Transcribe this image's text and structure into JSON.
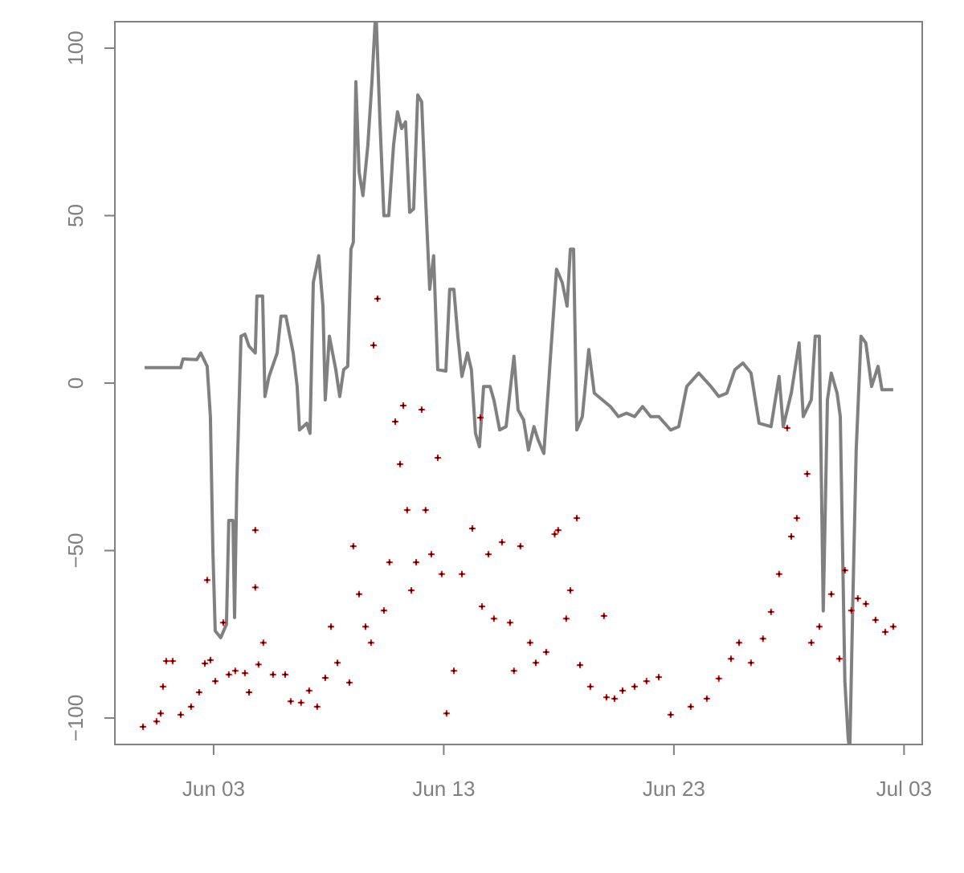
{
  "chart_data": {
    "type": "line",
    "xlim": [
      -1.29,
      33.79
    ],
    "ylim": [
      -107.9,
      107.9
    ],
    "xticks": [
      {
        "value": 3,
        "label": "Jun 03"
      },
      {
        "value": 13,
        "label": "Jun 13"
      },
      {
        "value": 23,
        "label": "Jun 23"
      },
      {
        "value": 33,
        "label": "Jul 03"
      }
    ],
    "yticks": [
      {
        "value": -100,
        "label": "−100"
      },
      {
        "value": -50,
        "label": "−50"
      },
      0,
      50,
      100
    ],
    "grid": false,
    "axis_color": "#808080",
    "series": [
      {
        "type": "line",
        "color": "#808080",
        "x": [
          0.0,
          1.57,
          1.67,
          2.27,
          2.44,
          2.72,
          2.86,
          2.97,
          3.07,
          3.31,
          3.56,
          3.66,
          3.84,
          3.91,
          4.01,
          4.19,
          4.36,
          4.54,
          4.81,
          4.88,
          5.13,
          5.23,
          5.41,
          5.76,
          5.93,
          6.14,
          6.46,
          6.63,
          6.73,
          7.05,
          7.19,
          7.33,
          7.57,
          7.75,
          7.85,
          8.03,
          8.31,
          8.48,
          8.65,
          8.83,
          8.97,
          9.07,
          9.18,
          9.32,
          9.49,
          9.7,
          9.88,
          10.05,
          10.23,
          10.4,
          10.61,
          10.82,
          10.99,
          11.17,
          11.34,
          11.52,
          11.69,
          11.87,
          12.04,
          12.21,
          12.39,
          12.56,
          12.74,
          13.09,
          13.26,
          13.44,
          13.61,
          13.79,
          14.03,
          14.2,
          14.38,
          14.55,
          14.73,
          15.01,
          15.18,
          15.43,
          15.71,
          16.05,
          16.23,
          16.47,
          16.68,
          16.92,
          17.1,
          17.35,
          17.62,
          17.9,
          18.15,
          18.36,
          18.5,
          18.64,
          18.78,
          19.02,
          19.3,
          19.54,
          19.89,
          20.24,
          20.59,
          20.94,
          21.29,
          21.64,
          21.99,
          22.34,
          22.86,
          23.21,
          23.56,
          24.08,
          24.61,
          24.95,
          25.3,
          25.65,
          26.0,
          26.35,
          26.7,
          27.22,
          27.57,
          27.75,
          28.1,
          28.44,
          28.62,
          28.97,
          29.14,
          29.32,
          29.49,
          29.67,
          29.84,
          30.09,
          30.23,
          30.43,
          30.57,
          30.64,
          30.78,
          30.92,
          31.13,
          31.34,
          31.59,
          31.87,
          32.04,
          32.53
        ],
        "values": [
          4.6,
          4.6,
          7.2,
          7,
          9,
          5,
          -10,
          -50,
          -74,
          -76,
          -72,
          -41,
          -41,
          -70,
          -30,
          14,
          14.6,
          11,
          9,
          26,
          26,
          -4,
          2,
          9,
          20,
          20,
          9,
          -1,
          -14,
          -12,
          -15,
          30,
          38,
          23,
          -5,
          14,
          4,
          -4,
          4,
          5,
          40,
          42,
          90,
          63,
          56,
          71,
          90,
          112,
          78,
          50,
          50,
          71,
          81,
          76,
          78,
          51,
          52,
          86,
          84,
          55,
          28,
          38,
          4,
          3.6,
          28,
          28,
          14,
          2,
          9,
          4,
          -15,
          -19,
          -1,
          -1,
          -5,
          -14,
          -13,
          8,
          -8,
          -11,
          -20,
          -13,
          -17,
          -21,
          6,
          34,
          30,
          23,
          40,
          40,
          -14,
          -10,
          10,
          -3,
          -5,
          -7,
          -10,
          -9,
          -10,
          -7,
          -10,
          -10,
          -14,
          -13,
          -1,
          3,
          -1,
          -4,
          -3,
          4,
          6,
          3,
          -12,
          -13,
          2,
          -13,
          -3,
          12,
          -10,
          -5,
          14,
          14,
          -68,
          -5,
          3,
          -3,
          -10,
          -89,
          -106,
          -110,
          -63,
          -20,
          14,
          12,
          -1,
          5,
          -2,
          -2
        ]
      },
      {
        "type": "scatter",
        "color": "#ff0000",
        "center_color": "#000000",
        "x": [
          -0.07,
          0.52,
          0.7,
          0.8,
          0.94,
          1.22,
          1.57,
          2.02,
          2.37,
          2.62,
          2.72,
          2.86,
          3.07,
          3.42,
          3.66,
          3.94,
          4.36,
          4.54,
          4.81,
          4.81,
          4.95,
          5.16,
          5.58,
          6.11,
          6.35,
          6.8,
          7.15,
          7.5,
          7.85,
          8.1,
          8.38,
          8.9,
          9.07,
          9.32,
          9.6,
          9.84,
          9.95,
          10.12,
          10.4,
          10.64,
          10.89,
          11.1,
          11.24,
          11.41,
          11.59,
          11.8,
          12.04,
          12.21,
          12.46,
          12.74,
          12.91,
          13.12,
          13.44,
          13.79,
          14.24,
          14.59,
          14.66,
          14.94,
          15.18,
          15.53,
          15.88,
          16.05,
          16.33,
          16.75,
          17.0,
          17.45,
          17.82,
          17.97,
          18.32,
          18.5,
          18.78,
          18.92,
          19.37,
          19.96,
          20.07,
          20.42,
          20.77,
          21.29,
          21.81,
          22.34,
          22.86,
          23.73,
          24.43,
          24.95,
          25.48,
          25.83,
          26.35,
          26.87,
          27.22,
          27.57,
          27.92,
          28.1,
          28.34,
          28.79,
          28.97,
          29.32,
          29.84,
          30.19,
          30.43,
          30.71,
          30.99,
          31.34,
          31.76,
          32.18,
          32.53
        ],
        "values": [
          -102.6,
          -101,
          -98.6,
          -90.6,
          -83,
          -83,
          -99,
          -96.6,
          -92.3,
          -83.7,
          -58.8,
          -82.7,
          -89,
          -71.5,
          -87,
          -85.9,
          -86.6,
          -92.3,
          -43.9,
          -61,
          -84,
          -77.5,
          -87,
          -87,
          -95,
          -95.4,
          -91.8,
          -96.6,
          -88,
          -72.7,
          -83.5,
          -89.4,
          -48.7,
          -63,
          -72.7,
          -77.5,
          11.3,
          25.2,
          -67.9,
          -53.5,
          -11.5,
          -24.2,
          -6.7,
          -37.9,
          -61.9,
          -53.5,
          -7.9,
          -37.9,
          -51.1,
          -22.3,
          -57,
          -98.6,
          -85.9,
          -57,
          -43.4,
          -10.3,
          -66.7,
          -51.1,
          -70.3,
          -47.5,
          -71.5,
          -85.9,
          -48.7,
          -77.5,
          -83.5,
          -80.3,
          -45.1,
          -43.9,
          -70.3,
          -61.9,
          -40.3,
          -84.2,
          -90.6,
          -69.5,
          -93.8,
          -94.2,
          -91.8,
          -90.6,
          -89,
          -87.8,
          -99,
          -96.6,
          -94.2,
          -88.2,
          -82.3,
          -77.5,
          -83.5,
          -76.3,
          -68.3,
          -57,
          -13.4,
          -45.8,
          -40.3,
          -27.1,
          -77.5,
          -72.7,
          -63,
          -82.3,
          -55.9,
          -67.9,
          -64.3,
          -65.9,
          -70.7,
          -74.3,
          -72.7
        ]
      }
    ]
  }
}
